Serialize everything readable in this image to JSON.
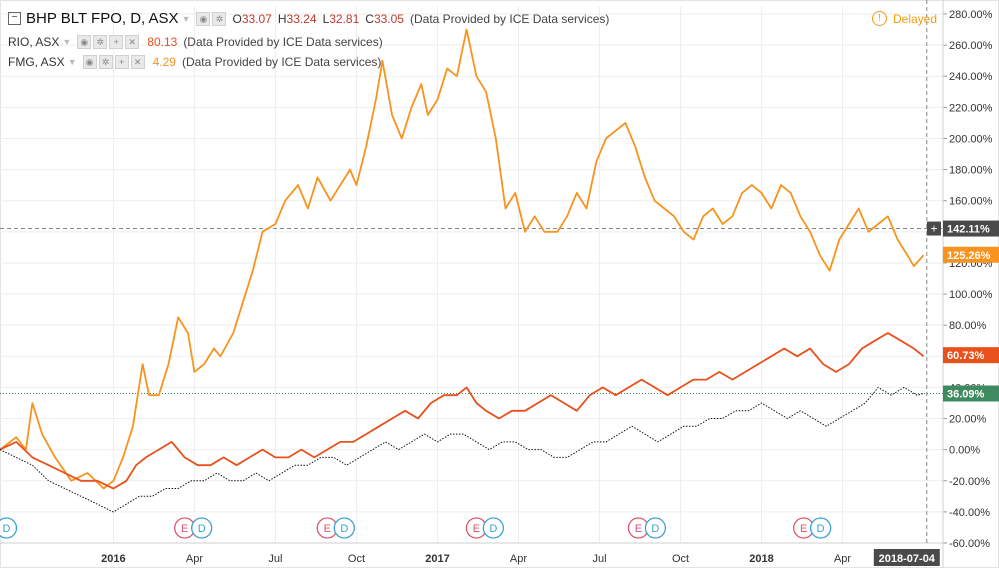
{
  "legend": {
    "main": {
      "symbol": "BHP BLT FPO, D, ASX",
      "o_label": "O",
      "o": "33.07",
      "h_label": "H",
      "h": "33.24",
      "l_label": "L",
      "l": "32.81",
      "c_label": "C",
      "c": "33.05",
      "source": "(Data Provided by ICE Data services)"
    },
    "rio": {
      "symbol": "RIO, ASX",
      "value": "80.13",
      "source": "(Data Provided by ICE Data services)"
    },
    "fmg": {
      "symbol": "FMG, ASX",
      "value": "4.29",
      "source": "(Data Provided by ICE Data services)"
    }
  },
  "delayed_label": "Delayed",
  "date_label": "2018-07-04",
  "colors": {
    "fmg": "#f7931e",
    "rio": "#e8501c",
    "bhp": "#111111",
    "grid": "#eeeeee",
    "axis_text": "#333333"
  },
  "chart_data": {
    "type": "line",
    "title": "",
    "xlabel": "",
    "ylabel": "",
    "y_unit": "%",
    "ylim": [
      -60,
      280
    ],
    "yticks": [
      "280.00%",
      "260.00%",
      "240.00%",
      "220.00%",
      "200.00%",
      "180.00%",
      "160.00%",
      "140.00%",
      "120.00%",
      "100.00%",
      "80.00%",
      "60.00%",
      "40.00%",
      "20.00%",
      "0.00%",
      "-20.00%",
      "-40.00%",
      "-60.00%"
    ],
    "x_ticks": [
      {
        "label": "2016",
        "x": 2016.0,
        "bold": true
      },
      {
        "label": "Apr",
        "x": 2016.25
      },
      {
        "label": "Jul",
        "x": 2016.5
      },
      {
        "label": "Oct",
        "x": 2016.75
      },
      {
        "label": "2017",
        "x": 2017.0,
        "bold": true
      },
      {
        "label": "Apr",
        "x": 2017.25
      },
      {
        "label": "Jul",
        "x": 2017.5
      },
      {
        "label": "Oct",
        "x": 2017.75
      },
      {
        "label": "2018",
        "x": 2018.0,
        "bold": true
      },
      {
        "label": "Apr",
        "x": 2018.25
      }
    ],
    "xlim": [
      2015.65,
      2018.56
    ],
    "series": [
      {
        "name": "FMG, ASX",
        "key": "fmg",
        "style": "solid",
        "last_label": "125.26%",
        "last_value": 125.26,
        "points": [
          [
            2015.65,
            0
          ],
          [
            2015.7,
            8
          ],
          [
            2015.73,
            0
          ],
          [
            2015.75,
            30
          ],
          [
            2015.78,
            10
          ],
          [
            2015.82,
            -5
          ],
          [
            2015.87,
            -20
          ],
          [
            2015.92,
            -15
          ],
          [
            2015.97,
            -25
          ],
          [
            2016.0,
            -20
          ],
          [
            2016.03,
            -5
          ],
          [
            2016.06,
            15
          ],
          [
            2016.09,
            55
          ],
          [
            2016.11,
            35
          ],
          [
            2016.14,
            35
          ],
          [
            2016.17,
            55
          ],
          [
            2016.2,
            85
          ],
          [
            2016.23,
            75
          ],
          [
            2016.25,
            50
          ],
          [
            2016.28,
            55
          ],
          [
            2016.31,
            65
          ],
          [
            2016.33,
            60
          ],
          [
            2016.37,
            75
          ],
          [
            2016.4,
            95
          ],
          [
            2016.43,
            115
          ],
          [
            2016.46,
            140
          ],
          [
            2016.5,
            145
          ],
          [
            2016.53,
            160
          ],
          [
            2016.57,
            170
          ],
          [
            2016.6,
            155
          ],
          [
            2016.63,
            175
          ],
          [
            2016.67,
            160
          ],
          [
            2016.7,
            170
          ],
          [
            2016.73,
            180
          ],
          [
            2016.75,
            170
          ],
          [
            2016.78,
            195
          ],
          [
            2016.81,
            225
          ],
          [
            2016.83,
            250
          ],
          [
            2016.86,
            215
          ],
          [
            2016.89,
            200
          ],
          [
            2016.92,
            220
          ],
          [
            2016.95,
            235
          ],
          [
            2016.97,
            215
          ],
          [
            2017.0,
            225
          ],
          [
            2017.03,
            245
          ],
          [
            2017.06,
            240
          ],
          [
            2017.09,
            270
          ],
          [
            2017.12,
            240
          ],
          [
            2017.15,
            230
          ],
          [
            2017.18,
            200
          ],
          [
            2017.21,
            155
          ],
          [
            2017.24,
            165
          ],
          [
            2017.27,
            140
          ],
          [
            2017.3,
            150
          ],
          [
            2017.33,
            140
          ],
          [
            2017.37,
            140
          ],
          [
            2017.4,
            150
          ],
          [
            2017.43,
            165
          ],
          [
            2017.46,
            155
          ],
          [
            2017.49,
            185
          ],
          [
            2017.52,
            200
          ],
          [
            2017.55,
            205
          ],
          [
            2017.58,
            210
          ],
          [
            2017.61,
            195
          ],
          [
            2017.64,
            175
          ],
          [
            2017.67,
            160
          ],
          [
            2017.7,
            155
          ],
          [
            2017.73,
            150
          ],
          [
            2017.76,
            140
          ],
          [
            2017.79,
            135
          ],
          [
            2017.82,
            150
          ],
          [
            2017.85,
            155
          ],
          [
            2017.88,
            145
          ],
          [
            2017.91,
            150
          ],
          [
            2017.94,
            165
          ],
          [
            2017.97,
            170
          ],
          [
            2018.0,
            165
          ],
          [
            2018.03,
            155
          ],
          [
            2018.06,
            170
          ],
          [
            2018.09,
            165
          ],
          [
            2018.12,
            150
          ],
          [
            2018.15,
            140
          ],
          [
            2018.18,
            125
          ],
          [
            2018.21,
            115
          ],
          [
            2018.24,
            135
          ],
          [
            2018.27,
            145
          ],
          [
            2018.3,
            155
          ],
          [
            2018.33,
            140
          ],
          [
            2018.36,
            145
          ],
          [
            2018.39,
            150
          ],
          [
            2018.42,
            135
          ],
          [
            2018.45,
            125
          ],
          [
            2018.47,
            118
          ],
          [
            2018.5,
            125
          ]
        ]
      },
      {
        "name": "RIO, ASX",
        "key": "rio",
        "style": "solid",
        "last_label": "60.73%",
        "last_value": 60.73,
        "points": [
          [
            2015.65,
            0
          ],
          [
            2015.7,
            5
          ],
          [
            2015.75,
            -5
          ],
          [
            2015.8,
            -10
          ],
          [
            2015.85,
            -15
          ],
          [
            2015.9,
            -20
          ],
          [
            2015.95,
            -20
          ],
          [
            2016.0,
            -25
          ],
          [
            2016.04,
            -20
          ],
          [
            2016.07,
            -10
          ],
          [
            2016.1,
            -5
          ],
          [
            2016.14,
            0
          ],
          [
            2016.18,
            5
          ],
          [
            2016.22,
            -5
          ],
          [
            2016.26,
            -10
          ],
          [
            2016.3,
            -10
          ],
          [
            2016.34,
            -5
          ],
          [
            2016.38,
            -10
          ],
          [
            2016.42,
            -5
          ],
          [
            2016.46,
            0
          ],
          [
            2016.5,
            -5
          ],
          [
            2016.54,
            -5
          ],
          [
            2016.58,
            0
          ],
          [
            2016.62,
            -5
          ],
          [
            2016.66,
            0
          ],
          [
            2016.7,
            5
          ],
          [
            2016.74,
            5
          ],
          [
            2016.78,
            10
          ],
          [
            2016.82,
            15
          ],
          [
            2016.86,
            20
          ],
          [
            2016.9,
            25
          ],
          [
            2016.94,
            20
          ],
          [
            2016.98,
            30
          ],
          [
            2017.02,
            35
          ],
          [
            2017.06,
            35
          ],
          [
            2017.09,
            40
          ],
          [
            2017.12,
            30
          ],
          [
            2017.15,
            25
          ],
          [
            2017.19,
            20
          ],
          [
            2017.23,
            25
          ],
          [
            2017.27,
            25
          ],
          [
            2017.31,
            30
          ],
          [
            2017.35,
            35
          ],
          [
            2017.39,
            30
          ],
          [
            2017.43,
            25
          ],
          [
            2017.47,
            35
          ],
          [
            2017.51,
            40
          ],
          [
            2017.55,
            35
          ],
          [
            2017.59,
            40
          ],
          [
            2017.63,
            45
          ],
          [
            2017.67,
            40
          ],
          [
            2017.71,
            35
          ],
          [
            2017.75,
            40
          ],
          [
            2017.79,
            45
          ],
          [
            2017.83,
            45
          ],
          [
            2017.87,
            50
          ],
          [
            2017.91,
            45
          ],
          [
            2017.95,
            50
          ],
          [
            2017.99,
            55
          ],
          [
            2018.03,
            60
          ],
          [
            2018.07,
            65
          ],
          [
            2018.11,
            60
          ],
          [
            2018.15,
            65
          ],
          [
            2018.19,
            55
          ],
          [
            2018.23,
            50
          ],
          [
            2018.27,
            55
          ],
          [
            2018.31,
            65
          ],
          [
            2018.35,
            70
          ],
          [
            2018.39,
            75
          ],
          [
            2018.43,
            70
          ],
          [
            2018.47,
            65
          ],
          [
            2018.5,
            60
          ]
        ]
      },
      {
        "name": "BHP BLT FPO, D, ASX",
        "key": "bhp",
        "style": "dotted",
        "last_label": "36.09%",
        "last_value": 36.09,
        "points": [
          [
            2015.65,
            0
          ],
          [
            2015.7,
            -5
          ],
          [
            2015.75,
            -10
          ],
          [
            2015.8,
            -20
          ],
          [
            2015.85,
            -25
          ],
          [
            2015.9,
            -30
          ],
          [
            2015.95,
            -35
          ],
          [
            2016.0,
            -40
          ],
          [
            2016.04,
            -35
          ],
          [
            2016.08,
            -30
          ],
          [
            2016.12,
            -30
          ],
          [
            2016.16,
            -25
          ],
          [
            2016.2,
            -25
          ],
          [
            2016.24,
            -20
          ],
          [
            2016.28,
            -20
          ],
          [
            2016.32,
            -15
          ],
          [
            2016.36,
            -20
          ],
          [
            2016.4,
            -20
          ],
          [
            2016.44,
            -15
          ],
          [
            2016.48,
            -20
          ],
          [
            2016.52,
            -15
          ],
          [
            2016.56,
            -10
          ],
          [
            2016.6,
            -10
          ],
          [
            2016.64,
            -5
          ],
          [
            2016.68,
            -5
          ],
          [
            2016.72,
            -10
          ],
          [
            2016.76,
            -5
          ],
          [
            2016.8,
            0
          ],
          [
            2016.84,
            5
          ],
          [
            2016.88,
            0
          ],
          [
            2016.92,
            5
          ],
          [
            2016.96,
            10
          ],
          [
            2017.0,
            5
          ],
          [
            2017.04,
            10
          ],
          [
            2017.08,
            10
          ],
          [
            2017.12,
            5
          ],
          [
            2017.16,
            0
          ],
          [
            2017.2,
            5
          ],
          [
            2017.24,
            5
          ],
          [
            2017.28,
            0
          ],
          [
            2017.32,
            0
          ],
          [
            2017.36,
            -5
          ],
          [
            2017.4,
            -5
          ],
          [
            2017.44,
            0
          ],
          [
            2017.48,
            5
          ],
          [
            2017.52,
            5
          ],
          [
            2017.56,
            10
          ],
          [
            2017.6,
            15
          ],
          [
            2017.64,
            10
          ],
          [
            2017.68,
            5
          ],
          [
            2017.72,
            10
          ],
          [
            2017.76,
            15
          ],
          [
            2017.8,
            15
          ],
          [
            2017.84,
            20
          ],
          [
            2017.88,
            20
          ],
          [
            2017.92,
            25
          ],
          [
            2017.96,
            25
          ],
          [
            2018.0,
            30
          ],
          [
            2018.04,
            25
          ],
          [
            2018.08,
            20
          ],
          [
            2018.12,
            25
          ],
          [
            2018.16,
            20
          ],
          [
            2018.2,
            15
          ],
          [
            2018.24,
            20
          ],
          [
            2018.28,
            25
          ],
          [
            2018.32,
            30
          ],
          [
            2018.36,
            40
          ],
          [
            2018.4,
            35
          ],
          [
            2018.44,
            40
          ],
          [
            2018.48,
            35
          ],
          [
            2018.5,
            36
          ]
        ]
      }
    ],
    "crosshair_label": "142.11%",
    "crosshair_value": 142.11,
    "crosshair_x": 2018.51,
    "events": [
      {
        "x": 2015.67,
        "labels": [
          "D"
        ]
      },
      {
        "x": 2016.22,
        "labels": [
          "E",
          "D"
        ]
      },
      {
        "x": 2016.66,
        "labels": [
          "E",
          "D"
        ]
      },
      {
        "x": 2017.12,
        "labels": [
          "E",
          "D"
        ]
      },
      {
        "x": 2017.62,
        "labels": [
          "E",
          "D"
        ]
      },
      {
        "x": 2018.13,
        "labels": [
          "E",
          "D"
        ]
      }
    ]
  }
}
